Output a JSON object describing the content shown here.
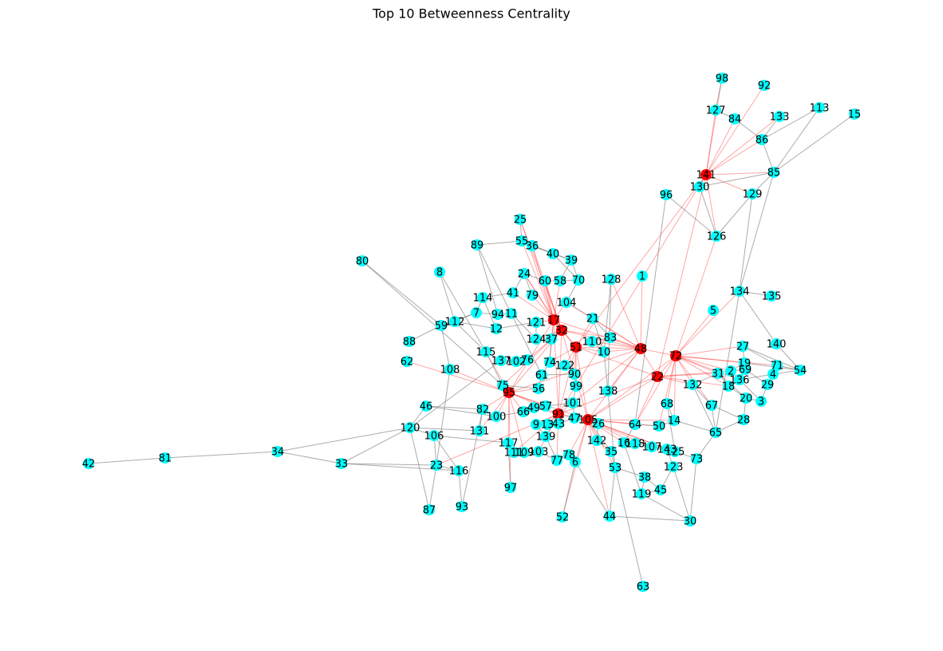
{
  "title": "Top 10 Betweenness Centrality",
  "node_color": "#00ffff",
  "highlight_color": "#ff0000",
  "edge_color": "#808080",
  "highlight_edge_color": "#ff0000",
  "highlighted": [
    "141",
    "17",
    "32",
    "51",
    "48",
    "72",
    "22",
    "95",
    "91",
    "105"
  ],
  "nodes": [
    "98",
    "92",
    "127",
    "113",
    "15",
    "84",
    "133",
    "86",
    "141",
    "85",
    "130",
    "129",
    "96",
    "126",
    "25",
    "55",
    "36",
    "89",
    "40",
    "39",
    "80",
    "8",
    "24",
    "60",
    "58",
    "70",
    "128",
    "1",
    "134",
    "135",
    "41",
    "79",
    "114",
    "104",
    "5",
    "7",
    "94",
    "11",
    "21",
    "112",
    "59",
    "12",
    "121",
    "17",
    "32",
    "83",
    "124",
    "37",
    "110",
    "88",
    "51",
    "10",
    "48",
    "72",
    "27",
    "140",
    "115",
    "137",
    "102",
    "76",
    "74",
    "122",
    "19",
    "71",
    "62",
    "2",
    "69",
    "54",
    "4",
    "108",
    "61",
    "90",
    "22",
    "31",
    "136",
    "132",
    "18",
    "29",
    "75",
    "56",
    "99",
    "138",
    "95",
    "20",
    "3",
    "46",
    "101",
    "57",
    "49",
    "68",
    "67",
    "82",
    "66",
    "91",
    "47",
    "105",
    "100",
    "26",
    "14",
    "64",
    "28",
    "9",
    "13",
    "43",
    "50",
    "131",
    "120",
    "65",
    "106",
    "139",
    "142",
    "16",
    "118",
    "107",
    "143",
    "125",
    "117",
    "35",
    "111",
    "109",
    "103",
    "78",
    "73",
    "34",
    "81",
    "42",
    "33",
    "23",
    "116",
    "77",
    "6",
    "53",
    "123",
    "38",
    "97",
    "45",
    "119",
    "87",
    "93",
    "52",
    "44",
    "30",
    "63"
  ],
  "edges": [
    [
      "141",
      "92"
    ],
    [
      "141",
      "133"
    ],
    [
      "141",
      "86"
    ],
    [
      "141",
      "85"
    ],
    [
      "141",
      "51"
    ],
    [
      "141",
      "91"
    ],
    [
      "141",
      "22"
    ],
    [
      "141",
      "127"
    ],
    [
      "141",
      "98"
    ],
    [
      "141",
      "84"
    ],
    [
      "141",
      "130"
    ],
    [
      "141",
      "126"
    ],
    [
      "141",
      "129"
    ],
    [
      "127",
      "98"
    ],
    [
      "127",
      "84"
    ],
    [
      "84",
      "86"
    ],
    [
      "86",
      "133"
    ],
    [
      "86",
      "85"
    ],
    [
      "85",
      "113"
    ],
    [
      "85",
      "15"
    ],
    [
      "85",
      "129"
    ],
    [
      "85",
      "130"
    ],
    [
      "113",
      "86"
    ],
    [
      "129",
      "126"
    ],
    [
      "130",
      "126"
    ],
    [
      "96",
      "126"
    ],
    [
      "96",
      "64"
    ],
    [
      "129",
      "134"
    ],
    [
      "85",
      "134"
    ],
    [
      "134",
      "135"
    ],
    [
      "134",
      "140"
    ],
    [
      "134",
      "65"
    ],
    [
      "48",
      "17"
    ],
    [
      "48",
      "32"
    ],
    [
      "48",
      "51"
    ],
    [
      "48",
      "21"
    ],
    [
      "48",
      "104"
    ],
    [
      "48",
      "1"
    ],
    [
      "48",
      "128"
    ],
    [
      "48",
      "91"
    ],
    [
      "48",
      "105"
    ],
    [
      "48",
      "95"
    ],
    [
      "48",
      "22"
    ],
    [
      "48",
      "72"
    ],
    [
      "48",
      "10"
    ],
    [
      "48",
      "83"
    ],
    [
      "48",
      "110"
    ],
    [
      "48",
      "138"
    ],
    [
      "72",
      "5"
    ],
    [
      "72",
      "134"
    ],
    [
      "72",
      "27"
    ],
    [
      "72",
      "19"
    ],
    [
      "72",
      "71"
    ],
    [
      "72",
      "2"
    ],
    [
      "72",
      "31"
    ],
    [
      "72",
      "18"
    ],
    [
      "72",
      "136"
    ],
    [
      "72",
      "132"
    ],
    [
      "72",
      "67"
    ],
    [
      "72",
      "68"
    ],
    [
      "72",
      "14"
    ],
    [
      "72",
      "64"
    ],
    [
      "72",
      "50"
    ],
    [
      "72",
      "22"
    ],
    [
      "72",
      "105"
    ],
    [
      "72",
      "126"
    ],
    [
      "22",
      "31"
    ],
    [
      "22",
      "2"
    ],
    [
      "22",
      "18"
    ],
    [
      "22",
      "64"
    ],
    [
      "22",
      "105"
    ],
    [
      "22",
      "91"
    ],
    [
      "22",
      "51"
    ],
    [
      "22",
      "132"
    ],
    [
      "17",
      "25"
    ],
    [
      "17",
      "55"
    ],
    [
      "17",
      "36"
    ],
    [
      "17",
      "24"
    ],
    [
      "17",
      "60"
    ],
    [
      "17",
      "58"
    ],
    [
      "17",
      "79"
    ],
    [
      "17",
      "41"
    ],
    [
      "17",
      "121"
    ],
    [
      "17",
      "32"
    ],
    [
      "17",
      "51"
    ],
    [
      "17",
      "74"
    ],
    [
      "17",
      "95"
    ],
    [
      "17",
      "91"
    ],
    [
      "17",
      "104"
    ],
    [
      "17",
      "37"
    ],
    [
      "32",
      "25"
    ],
    [
      "32",
      "36"
    ],
    [
      "32",
      "24"
    ],
    [
      "32",
      "60"
    ],
    [
      "32",
      "124"
    ],
    [
      "32",
      "51"
    ],
    [
      "32",
      "105"
    ],
    [
      "32",
      "91"
    ],
    [
      "32",
      "95"
    ],
    [
      "32",
      "76"
    ],
    [
      "32",
      "75"
    ],
    [
      "32",
      "83"
    ],
    [
      "51",
      "110"
    ],
    [
      "51",
      "10"
    ],
    [
      "51",
      "21"
    ],
    [
      "51",
      "74"
    ],
    [
      "51",
      "90"
    ],
    [
      "51",
      "122"
    ],
    [
      "51",
      "99"
    ],
    [
      "51",
      "105"
    ],
    [
      "51",
      "91"
    ],
    [
      "95",
      "62"
    ],
    [
      "95",
      "115"
    ],
    [
      "95",
      "108"
    ],
    [
      "95",
      "75"
    ],
    [
      "95",
      "56"
    ],
    [
      "95",
      "57"
    ],
    [
      "95",
      "82"
    ],
    [
      "95",
      "100"
    ],
    [
      "95",
      "66"
    ],
    [
      "95",
      "91"
    ],
    [
      "95",
      "105"
    ],
    [
      "95",
      "131"
    ],
    [
      "95",
      "117"
    ],
    [
      "95",
      "109"
    ],
    [
      "95",
      "97"
    ],
    [
      "91",
      "47"
    ],
    [
      "91",
      "43"
    ],
    [
      "91",
      "13"
    ],
    [
      "91",
      "9"
    ],
    [
      "91",
      "105"
    ],
    [
      "91",
      "139"
    ],
    [
      "91",
      "103"
    ],
    [
      "91",
      "77"
    ],
    [
      "91",
      "111"
    ],
    [
      "91",
      "23"
    ],
    [
      "91",
      "49"
    ],
    [
      "105",
      "26"
    ],
    [
      "105",
      "142"
    ],
    [
      "105",
      "16"
    ],
    [
      "105",
      "118"
    ],
    [
      "105",
      "107"
    ],
    [
      "105",
      "143"
    ],
    [
      "105",
      "125"
    ],
    [
      "105",
      "50"
    ],
    [
      "105",
      "64"
    ],
    [
      "105",
      "35"
    ],
    [
      "105",
      "53"
    ],
    [
      "105",
      "44"
    ],
    [
      "105",
      "6"
    ],
    [
      "105",
      "78"
    ],
    [
      "105",
      "52"
    ],
    [
      "105",
      "14"
    ],
    [
      "34",
      "81"
    ],
    [
      "81",
      "42"
    ],
    [
      "34",
      "120"
    ],
    [
      "34",
      "33"
    ],
    [
      "33",
      "120"
    ],
    [
      "33",
      "23"
    ],
    [
      "120",
      "46"
    ],
    [
      "120",
      "106"
    ],
    [
      "120",
      "131"
    ],
    [
      "120",
      "137"
    ],
    [
      "80",
      "59"
    ],
    [
      "80",
      "75"
    ],
    [
      "8",
      "112"
    ],
    [
      "8",
      "115"
    ],
    [
      "59",
      "88"
    ],
    [
      "59",
      "112"
    ],
    [
      "59",
      "7"
    ],
    [
      "112",
      "7"
    ],
    [
      "112",
      "12"
    ],
    [
      "112",
      "115"
    ],
    [
      "7",
      "114"
    ],
    [
      "7",
      "94"
    ],
    [
      "114",
      "41"
    ],
    [
      "114",
      "12"
    ],
    [
      "89",
      "55"
    ],
    [
      "89",
      "94"
    ],
    [
      "89",
      "61"
    ],
    [
      "55",
      "25"
    ],
    [
      "55",
      "36"
    ],
    [
      "55",
      "40"
    ],
    [
      "36",
      "40"
    ],
    [
      "36",
      "39"
    ],
    [
      "40",
      "39"
    ],
    [
      "40",
      "70"
    ],
    [
      "39",
      "70"
    ],
    [
      "39",
      "58"
    ],
    [
      "24",
      "60"
    ],
    [
      "24",
      "41"
    ],
    [
      "24",
      "79"
    ],
    [
      "60",
      "58"
    ],
    [
      "58",
      "70"
    ],
    [
      "70",
      "104"
    ],
    [
      "104",
      "21"
    ],
    [
      "21",
      "10"
    ],
    [
      "21",
      "83"
    ],
    [
      "83",
      "110"
    ],
    [
      "110",
      "10"
    ],
    [
      "128",
      "10"
    ],
    [
      "128",
      "138"
    ],
    [
      "10",
      "138"
    ],
    [
      "138",
      "53"
    ],
    [
      "12",
      "121"
    ],
    [
      "94",
      "11"
    ],
    [
      "11",
      "124"
    ],
    [
      "121",
      "124"
    ],
    [
      "124",
      "37"
    ],
    [
      "37",
      "74"
    ],
    [
      "74",
      "61"
    ],
    [
      "76",
      "102"
    ],
    [
      "102",
      "137"
    ],
    [
      "137",
      "115"
    ],
    [
      "115",
      "75"
    ],
    [
      "75",
      "56"
    ],
    [
      "56",
      "61"
    ],
    [
      "61",
      "90"
    ],
    [
      "90",
      "99"
    ],
    [
      "99",
      "101"
    ],
    [
      "101",
      "47"
    ],
    [
      "47",
      "26"
    ],
    [
      "26",
      "142"
    ],
    [
      "142",
      "35"
    ],
    [
      "35",
      "53"
    ],
    [
      "53",
      "63"
    ],
    [
      "53",
      "44"
    ],
    [
      "44",
      "30"
    ],
    [
      "30",
      "123"
    ],
    [
      "123",
      "45"
    ],
    [
      "45",
      "38"
    ],
    [
      "38",
      "119"
    ],
    [
      "119",
      "16"
    ],
    [
      "16",
      "118"
    ],
    [
      "118",
      "107"
    ],
    [
      "107",
      "143"
    ],
    [
      "143",
      "125"
    ],
    [
      "125",
      "73"
    ],
    [
      "73",
      "65"
    ],
    [
      "65",
      "28"
    ],
    [
      "28",
      "20"
    ],
    [
      "20",
      "3"
    ],
    [
      "3",
      "29"
    ],
    [
      "29",
      "4"
    ],
    [
      "4",
      "54"
    ],
    [
      "54",
      "71"
    ],
    [
      "71",
      "27"
    ],
    [
      "27",
      "19"
    ],
    [
      "19",
      "2"
    ],
    [
      "2",
      "69"
    ],
    [
      "69",
      "136"
    ],
    [
      "136",
      "18"
    ],
    [
      "18",
      "31"
    ],
    [
      "31",
      "132"
    ],
    [
      "132",
      "67"
    ],
    [
      "67",
      "65"
    ],
    [
      "67",
      "28"
    ],
    [
      "65",
      "14"
    ],
    [
      "14",
      "50"
    ],
    [
      "50",
      "64"
    ],
    [
      "64",
      "16"
    ],
    [
      "68",
      "14"
    ],
    [
      "68",
      "125"
    ],
    [
      "46",
      "82"
    ],
    [
      "46",
      "100"
    ],
    [
      "108",
      "23"
    ],
    [
      "108",
      "59"
    ],
    [
      "23",
      "87"
    ],
    [
      "23",
      "116"
    ],
    [
      "116",
      "93"
    ],
    [
      "116",
      "106"
    ],
    [
      "106",
      "117"
    ],
    [
      "87",
      "120"
    ],
    [
      "93",
      "82"
    ],
    [
      "131",
      "82"
    ],
    [
      "117",
      "111"
    ],
    [
      "111",
      "109"
    ],
    [
      "109",
      "103"
    ],
    [
      "103",
      "77"
    ],
    [
      "77",
      "78"
    ],
    [
      "78",
      "6"
    ],
    [
      "6",
      "44"
    ],
    [
      "6",
      "52"
    ],
    [
      "77",
      "139"
    ],
    [
      "139",
      "9"
    ],
    [
      "9",
      "13"
    ],
    [
      "13",
      "43"
    ],
    [
      "43",
      "47"
    ],
    [
      "49",
      "66"
    ],
    [
      "66",
      "57"
    ],
    [
      "57",
      "101"
    ],
    [
      "100",
      "66"
    ],
    [
      "97",
      "117"
    ],
    [
      "30",
      "119"
    ],
    [
      "30",
      "73"
    ],
    [
      "38",
      "53"
    ],
    [
      "45",
      "119"
    ],
    [
      "123",
      "143"
    ],
    [
      "19",
      "54"
    ],
    [
      "27",
      "54"
    ],
    [
      "140",
      "54"
    ],
    [
      "33",
      "116"
    ],
    [
      "106",
      "23"
    ],
    [
      "136",
      "4"
    ],
    [
      "69",
      "29"
    ],
    [
      "2",
      "3"
    ],
    [
      "31",
      "20"
    ],
    [
      "132",
      "65"
    ],
    [
      "18",
      "20"
    ]
  ]
}
